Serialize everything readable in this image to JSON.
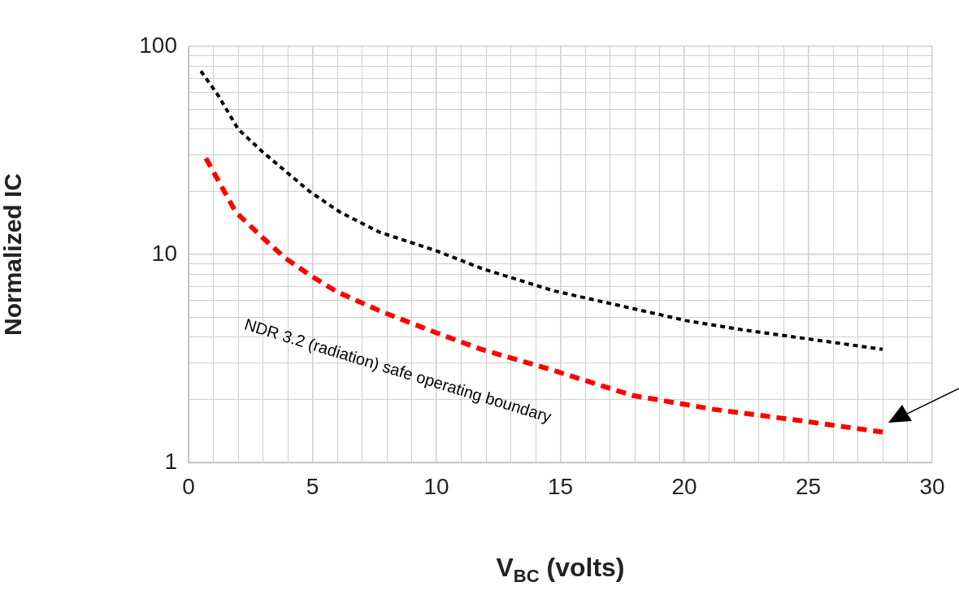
{
  "chart_data": {
    "type": "line",
    "xlabel": "V$_{BC}$ (volts)",
    "ylabel": "Normalized IC",
    "log": "y",
    "grid": true,
    "legend": false,
    "line_style": "dashed",
    "marker": "none",
    "xlim": [
      0,
      30
    ],
    "ylim": [
      1,
      100
    ],
    "xticks": [
      0,
      {
        "value": 1,
        "label": null
      },
      {
        "value": 2,
        "label": null
      },
      {
        "value": 3,
        "label": null
      },
      {
        "value": 4,
        "label": null
      },
      5,
      {
        "value": 6,
        "label": null
      },
      {
        "value": 7,
        "label": null
      },
      {
        "value": 8,
        "label": null
      },
      {
        "value": 9,
        "label": null
      },
      10,
      {
        "value": 11,
        "label": null
      },
      {
        "value": 12,
        "label": null
      },
      {
        "value": 13,
        "label": null
      },
      {
        "value": 14,
        "label": null
      },
      15,
      {
        "value": 16,
        "label": null
      },
      {
        "value": 17,
        "label": null
      },
      {
        "value": 18,
        "label": null
      },
      {
        "value": 19,
        "label": null
      },
      20,
      {
        "value": 21,
        "label": null
      },
      {
        "value": 22,
        "label": null
      },
      {
        "value": 23,
        "label": null
      },
      {
        "value": 24,
        "label": null
      },
      25,
      {
        "value": 26,
        "label": null
      },
      {
        "value": 27,
        "label": null
      },
      {
        "value": 28,
        "label": null
      },
      {
        "value": 29,
        "label": null
      },
      30
    ],
    "yticks": [
      1,
      {
        "value": 2,
        "label": null
      },
      {
        "value": 3,
        "label": null
      },
      {
        "value": 4,
        "label": null
      },
      {
        "value": 5,
        "label": null
      },
      {
        "value": 6,
        "label": null
      },
      {
        "value": 7,
        "label": null
      },
      {
        "value": 8,
        "label": null
      },
      {
        "value": 9,
        "label": null
      },
      10,
      {
        "value": 20,
        "label": null
      },
      {
        "value": 30,
        "label": null
      },
      {
        "value": 40,
        "label": null
      },
      {
        "value": 50,
        "label": null
      },
      {
        "value": 60,
        "label": null
      },
      {
        "value": 70,
        "label": null
      },
      {
        "value": 80,
        "label": null
      },
      {
        "value": 90,
        "label": null
      },
      100
    ],
    "series": [
      {
        "color": "#000000",
        "x": [
          0.5,
          1.2,
          2,
          3,
          4.9,
          6.1,
          7.7,
          10,
          11.9,
          14.7,
          17.9,
          20.1,
          22.3,
          24.5,
          28
        ],
        "values": [
          76,
          58,
          40,
          31,
          20,
          16,
          12.8,
          10.4,
          8.5,
          6.7,
          5.5,
          4.8,
          4.35,
          4,
          3.5
        ]
      },
      {
        "color": "#ff0000",
        "x": [
          0.7,
          1.35,
          1.9,
          3,
          3.9,
          5,
          6,
          7.8,
          10,
          11.8,
          14.6,
          17.9,
          21.2,
          24.5,
          28
        ],
        "values": [
          29,
          21,
          16,
          12,
          9.6,
          7.8,
          6.6,
          5.3,
          4.2,
          3.5,
          2.8,
          2.1,
          1.8,
          1.6,
          1.4
        ]
      }
    ],
    "annotations": [
      "NDR 3.2 (radiation) safe operating boundary"
    ]
  }
}
